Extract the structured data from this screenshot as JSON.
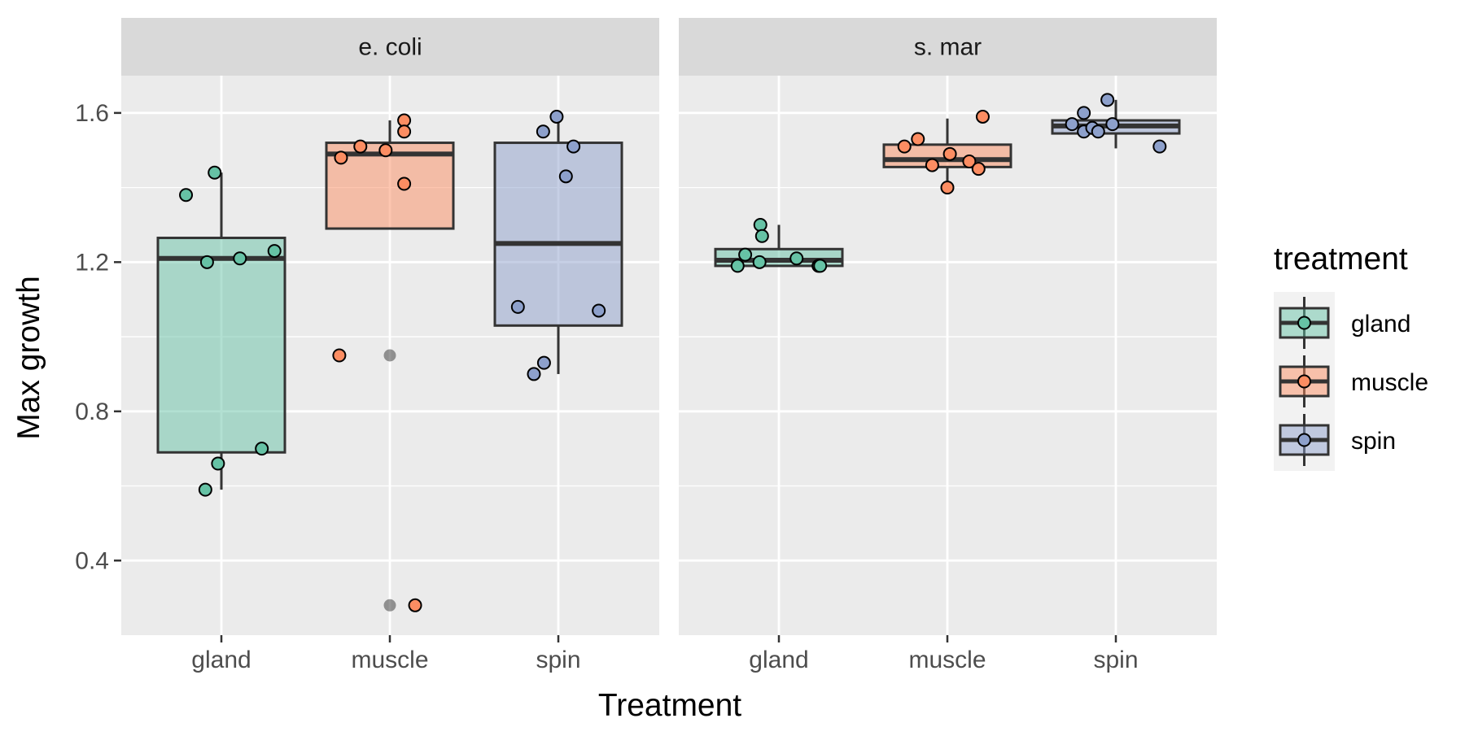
{
  "chart_data": {
    "type": "box",
    "xlabel": "Treatment",
    "ylabel": "Max growth",
    "ylim": [
      0.2,
      1.7
    ],
    "y_ticks": [
      {
        "value": 0.4,
        "label": "0.4"
      },
      {
        "value": 0.8,
        "label": "0.8"
      },
      {
        "value": 1.2,
        "label": "1.2"
      },
      {
        "value": 1.6,
        "label": "1.6"
      }
    ],
    "y_minor_ticks": [
      0.6,
      1.0,
      1.4
    ],
    "grid": true,
    "categories": [
      "gland",
      "muscle",
      "spin"
    ],
    "colors": {
      "gland": "#66C2A5",
      "muscle": "#FC8D62",
      "spin": "#8DA0CB"
    },
    "legend": {
      "title": "treatment",
      "position": "right",
      "entries": [
        "gland",
        "muscle",
        "spin"
      ]
    },
    "facets": [
      {
        "label": "e. coli",
        "boxes": [
          {
            "category": "gland",
            "whisker_low": 0.59,
            "q1": 0.69,
            "median": 1.21,
            "q3": 1.265,
            "whisker_high": 1.44,
            "outliers": []
          },
          {
            "category": "muscle",
            "whisker_low": 1.29,
            "q1": 1.29,
            "median": 1.49,
            "q3": 1.52,
            "whisker_high": 1.58,
            "outliers": [
              0.95,
              0.28
            ]
          },
          {
            "category": "spin",
            "whisker_low": 0.9,
            "q1": 1.03,
            "median": 1.25,
            "q3": 1.52,
            "whisker_high": 1.59,
            "outliers": []
          }
        ],
        "points": [
          {
            "category": "gland",
            "jitter": -0.42,
            "y": 1.38
          },
          {
            "category": "gland",
            "jitter": -0.08,
            "y": 1.44
          },
          {
            "category": "gland",
            "jitter": -0.17,
            "y": 1.2
          },
          {
            "category": "gland",
            "jitter": 0.22,
            "y": 1.21
          },
          {
            "category": "gland",
            "jitter": 0.63,
            "y": 1.23
          },
          {
            "category": "gland",
            "jitter": 0.48,
            "y": 0.7
          },
          {
            "category": "gland",
            "jitter": -0.04,
            "y": 0.66
          },
          {
            "category": "gland",
            "jitter": -0.19,
            "y": 0.59
          },
          {
            "category": "muscle",
            "jitter": -0.58,
            "y": 1.48
          },
          {
            "category": "muscle",
            "jitter": -0.35,
            "y": 1.51
          },
          {
            "category": "muscle",
            "jitter": -0.05,
            "y": 1.5
          },
          {
            "category": "muscle",
            "jitter": 0.17,
            "y": 1.58
          },
          {
            "category": "muscle",
            "jitter": 0.17,
            "y": 1.55
          },
          {
            "category": "muscle",
            "jitter": 0.17,
            "y": 1.41
          },
          {
            "category": "muscle",
            "jitter": -0.6,
            "y": 0.95
          },
          {
            "category": "muscle",
            "jitter": 0.3,
            "y": 0.28
          },
          {
            "category": "spin",
            "jitter": -0.18,
            "y": 1.55
          },
          {
            "category": "spin",
            "jitter": -0.02,
            "y": 1.59
          },
          {
            "category": "spin",
            "jitter": 0.18,
            "y": 1.51
          },
          {
            "category": "spin",
            "jitter": 0.09,
            "y": 1.43
          },
          {
            "category": "spin",
            "jitter": -0.48,
            "y": 1.08
          },
          {
            "category": "spin",
            "jitter": 0.48,
            "y": 1.07
          },
          {
            "category": "spin",
            "jitter": -0.17,
            "y": 0.93
          },
          {
            "category": "spin",
            "jitter": -0.29,
            "y": 0.9
          }
        ]
      },
      {
        "label": "s. mar",
        "boxes": [
          {
            "category": "gland",
            "whisker_low": 1.19,
            "q1": 1.19,
            "median": 1.205,
            "q3": 1.235,
            "whisker_high": 1.3,
            "outliers": []
          },
          {
            "category": "muscle",
            "whisker_low": 1.4,
            "q1": 1.455,
            "median": 1.475,
            "q3": 1.515,
            "whisker_high": 1.585,
            "outliers": []
          },
          {
            "category": "spin",
            "whisker_low": 1.505,
            "q1": 1.545,
            "median": 1.565,
            "q3": 1.58,
            "whisker_high": 1.635,
            "outliers": []
          }
        ],
        "points": [
          {
            "category": "gland",
            "jitter": -0.49,
            "y": 1.19
          },
          {
            "category": "gland",
            "jitter": -0.4,
            "y": 1.22
          },
          {
            "category": "gland",
            "jitter": -0.22,
            "y": 1.3
          },
          {
            "category": "gland",
            "jitter": -0.2,
            "y": 1.27
          },
          {
            "category": "gland",
            "jitter": -0.23,
            "y": 1.2
          },
          {
            "category": "gland",
            "jitter": 0.21,
            "y": 1.21
          },
          {
            "category": "gland",
            "jitter": 0.47,
            "y": 1.19
          },
          {
            "category": "gland",
            "jitter": 0.49,
            "y": 1.19
          },
          {
            "category": "muscle",
            "jitter": -0.51,
            "y": 1.51
          },
          {
            "category": "muscle",
            "jitter": -0.35,
            "y": 1.53
          },
          {
            "category": "muscle",
            "jitter": -0.18,
            "y": 1.46
          },
          {
            "category": "muscle",
            "jitter": 0.03,
            "y": 1.49
          },
          {
            "category": "muscle",
            "jitter": 0.26,
            "y": 1.47
          },
          {
            "category": "muscle",
            "jitter": 0.37,
            "y": 1.45
          },
          {
            "category": "muscle",
            "jitter": 0.42,
            "y": 1.59
          },
          {
            "category": "muscle",
            "jitter": 0.0,
            "y": 1.4
          },
          {
            "category": "spin",
            "jitter": -0.52,
            "y": 1.57
          },
          {
            "category": "spin",
            "jitter": -0.38,
            "y": 1.55
          },
          {
            "category": "spin",
            "jitter": -0.38,
            "y": 1.6
          },
          {
            "category": "spin",
            "jitter": -0.28,
            "y": 1.56
          },
          {
            "category": "spin",
            "jitter": -0.21,
            "y": 1.55
          },
          {
            "category": "spin",
            "jitter": -0.04,
            "y": 1.57
          },
          {
            "category": "spin",
            "jitter": -0.1,
            "y": 1.635
          },
          {
            "category": "spin",
            "jitter": 0.52,
            "y": 1.51
          }
        ]
      }
    ]
  }
}
